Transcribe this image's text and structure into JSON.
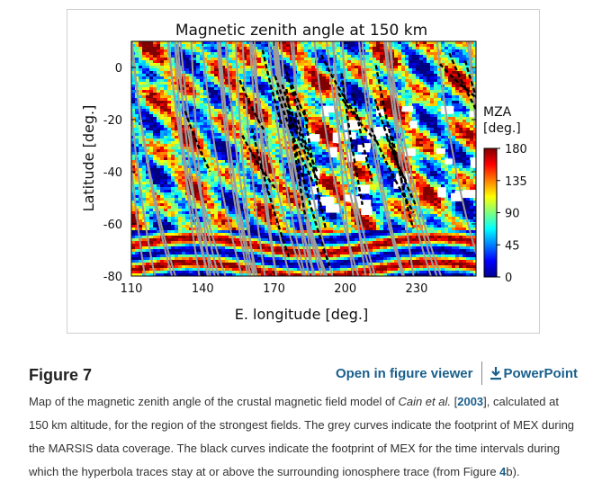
{
  "figure": {
    "chart_data": {
      "type": "heatmap",
      "title": "Magnetic zenith angle at 150 km",
      "xlabel": "E. longitude [deg.]",
      "ylabel": "Latitude [deg.]",
      "xticks": [
        "110",
        "140",
        "170",
        "200",
        "230"
      ],
      "yticks": [
        "0",
        "-20",
        "-40",
        "-60",
        "-80"
      ],
      "xlim": [
        110,
        255
      ],
      "ylim": [
        -80,
        10
      ],
      "colorbar": {
        "label_line1": "MZA",
        "label_line2": "[deg.]",
        "ticks": [
          "180",
          "135",
          "90",
          "45",
          "0"
        ],
        "range": [
          0,
          180
        ],
        "colormap": "jet"
      },
      "overlays": [
        {
          "color": "#999999",
          "description_key": "grey curves"
        },
        {
          "color": "#000000",
          "description_key": "black curves"
        }
      ]
    }
  },
  "caption_block": {
    "label": "Figure 7",
    "open_viewer": "Open in figure viewer",
    "powerpoint": "PowerPoint",
    "text_before_author": "Map of the magnetic zenith angle of the crustal magnetic field model of ",
    "author": "Cain et al.",
    "text_between": " [",
    "ref_year": "2003",
    "text_after_ref": "], calculated at 150 km altitude, for the region of the strongest fields. The grey curves indicate the footprint of MEX during the MARSIS data coverage. The black curves indicate the footprint of MEX for the time intervals during which the hyperbola traces stay at or above the surrounding ionosphere trace (from Figure ",
    "fig_ref": "4",
    "fig_ref_suffix": "b",
    "text_end": ")."
  },
  "colors": {
    "link": "#1a5f8c"
  }
}
